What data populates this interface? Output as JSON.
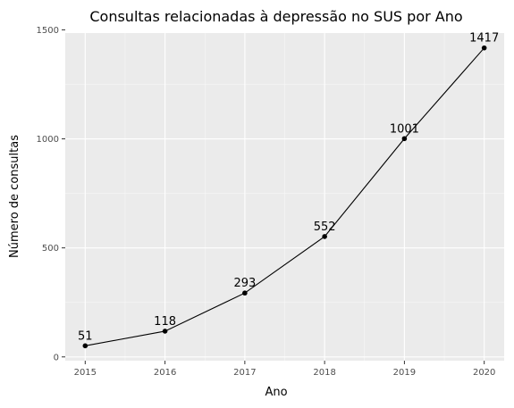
{
  "chart_data": {
    "type": "line",
    "title": "Consultas relacionadas à depressão no SUS por Ano",
    "xlabel": "Ano",
    "ylabel": "Número de consultas",
    "x": [
      2015,
      2016,
      2017,
      2018,
      2019,
      2020
    ],
    "series": [
      {
        "values": [
          51,
          118,
          293,
          552,
          1001,
          1417
        ]
      }
    ],
    "data_labels": [
      "51",
      "118",
      "293",
      "552",
      "1001",
      "1417"
    ],
    "x_ticks": [
      "2015",
      "2016",
      "2017",
      "2018",
      "2019",
      "2020"
    ],
    "y_ticks": [
      "0",
      "500",
      "1000",
      "1500"
    ],
    "xlim": [
      2014.75,
      2020.25
    ],
    "ylim": [
      -17.3,
      1485.3
    ],
    "grid": true,
    "colors": {
      "panel_background": "#ebebeb",
      "grid_major": "#ffffff",
      "line": "#000000",
      "point": "#000000"
    }
  }
}
